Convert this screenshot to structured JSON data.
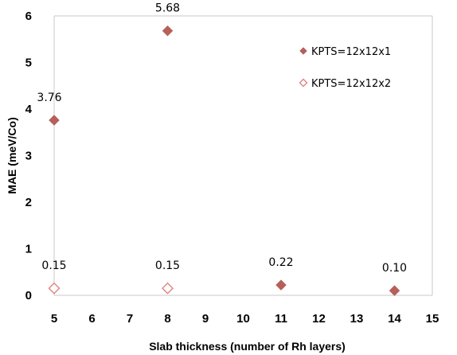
{
  "chart_data": {
    "type": "scatter",
    "title": "",
    "xlabel": "Slab thickness (number of Rh layers)",
    "ylabel": "MAE (meV/Co)",
    "xlim": [
      5,
      15
    ],
    "ylim": [
      0,
      6
    ],
    "xticks": [
      5,
      6,
      7,
      8,
      9,
      10,
      11,
      12,
      13,
      14,
      15
    ],
    "yticks": [
      0,
      1,
      2,
      3,
      4,
      5,
      6
    ],
    "grid": false,
    "legend_position": "top-right",
    "series": [
      {
        "name": "KPTS=12x12x1",
        "marker": "filled-diamond",
        "color": "#b5605a",
        "points": [
          {
            "x": 5,
            "y": 3.76
          },
          {
            "x": 8,
            "y": 5.68
          },
          {
            "x": 11,
            "y": 0.22
          },
          {
            "x": 14,
            "y": 0.1
          }
        ]
      },
      {
        "name": "KPTS=12x12x2",
        "marker": "open-diamond",
        "color": "#e07a7a",
        "points": [
          {
            "x": 5,
            "y": 0.15
          },
          {
            "x": 8,
            "y": 0.15
          }
        ]
      }
    ],
    "annotations": [
      {
        "text": "3.76",
        "x": 5,
        "y": 3.76
      },
      {
        "text": "5.68",
        "x": 8,
        "y": 5.68
      },
      {
        "text": "0.15",
        "x": 5,
        "y": 0.15
      },
      {
        "text": "0.15",
        "x": 8,
        "y": 0.15
      },
      {
        "text": "0.22",
        "x": 11,
        "y": 0.22
      },
      {
        "text": "0.10",
        "x": 14,
        "y": 0.1
      }
    ]
  }
}
